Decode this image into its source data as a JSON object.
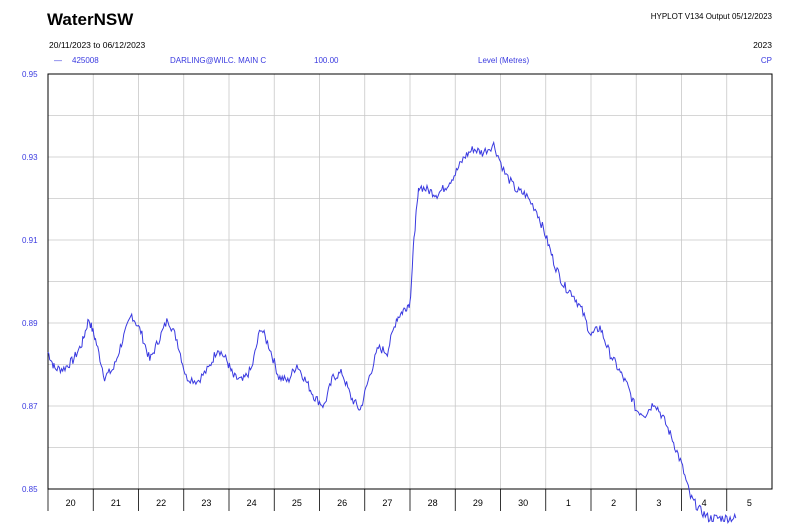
{
  "header": {
    "brand": "WaterNSW",
    "program": "HYPLOT V134 Output 05/12/2023",
    "date_range": "20/11/2023 to 06/12/2023",
    "year": "2023"
  },
  "legend": {
    "marker": "—",
    "station": "425008",
    "site": "DARLING@WILC. MAIN C",
    "variable_code": "100.00",
    "variable": "Level (Metres)",
    "flag": "CP"
  },
  "colors": {
    "series": "#3a3ae0",
    "grid": "#c8c8c8",
    "axis": "#000000"
  },
  "chart_data": {
    "type": "line",
    "title": "",
    "xlabel": "",
    "ylabel": "",
    "ylim": [
      0.85,
      0.95
    ],
    "xlim": [
      0,
      16
    ],
    "ytick_labels": [
      "0.95",
      "0.93",
      "0.91",
      "0.89",
      "0.87",
      "0.85"
    ],
    "ytick_values": [
      0.95,
      0.93,
      0.91,
      0.89,
      0.87,
      0.85
    ],
    "xtick_labels": [
      "20",
      "21",
      "22",
      "23",
      "24",
      "25",
      "26",
      "27",
      "28",
      "29",
      "30",
      "1",
      "2",
      "3",
      "4",
      "5"
    ],
    "grid": true,
    "series": [
      {
        "name": "425008",
        "x": [
          0.0,
          0.15,
          0.35,
          0.55,
          0.75,
          0.9,
          1.05,
          1.25,
          1.45,
          1.65,
          1.85,
          2.05,
          2.25,
          2.45,
          2.65,
          2.85,
          3.05,
          3.3,
          3.55,
          3.75,
          3.95,
          4.1,
          4.3,
          4.5,
          4.7,
          4.9,
          5.1,
          5.3,
          5.5,
          5.7,
          5.9,
          6.1,
          6.3,
          6.5,
          6.7,
          6.9,
          7.1,
          7.3,
          7.5,
          7.7,
          7.85,
          8.0,
          8.1,
          8.2,
          8.4,
          8.6,
          8.8,
          9.0,
          9.2,
          9.4,
          9.6,
          9.85,
          10.1,
          10.35,
          10.55,
          10.8,
          11.0,
          11.2,
          11.4,
          11.6,
          11.8,
          12.0,
          12.2,
          12.4,
          12.6,
          12.8,
          13.0,
          13.2,
          13.4,
          13.6,
          13.8,
          14.0,
          14.2,
          14.4,
          14.6,
          14.8,
          15.0,
          15.2
        ],
        "values": [
          0.883,
          0.879,
          0.879,
          0.881,
          0.885,
          0.891,
          0.886,
          0.877,
          0.879,
          0.886,
          0.892,
          0.888,
          0.881,
          0.886,
          0.891,
          0.886,
          0.877,
          0.876,
          0.879,
          0.884,
          0.881,
          0.877,
          0.876,
          0.879,
          0.889,
          0.884,
          0.877,
          0.876,
          0.88,
          0.876,
          0.872,
          0.87,
          0.877,
          0.878,
          0.872,
          0.869,
          0.877,
          0.884,
          0.883,
          0.891,
          0.893,
          0.895,
          0.912,
          0.923,
          0.922,
          0.921,
          0.923,
          0.926,
          0.93,
          0.932,
          0.931,
          0.933,
          0.926,
          0.922,
          0.921,
          0.917,
          0.911,
          0.904,
          0.899,
          0.897,
          0.893,
          0.887,
          0.889,
          0.883,
          0.879,
          0.875,
          0.869,
          0.868,
          0.871,
          0.867,
          0.862,
          0.856,
          0.848,
          0.845,
          0.843,
          0.843,
          0.843,
          0.843
        ]
      }
    ]
  }
}
